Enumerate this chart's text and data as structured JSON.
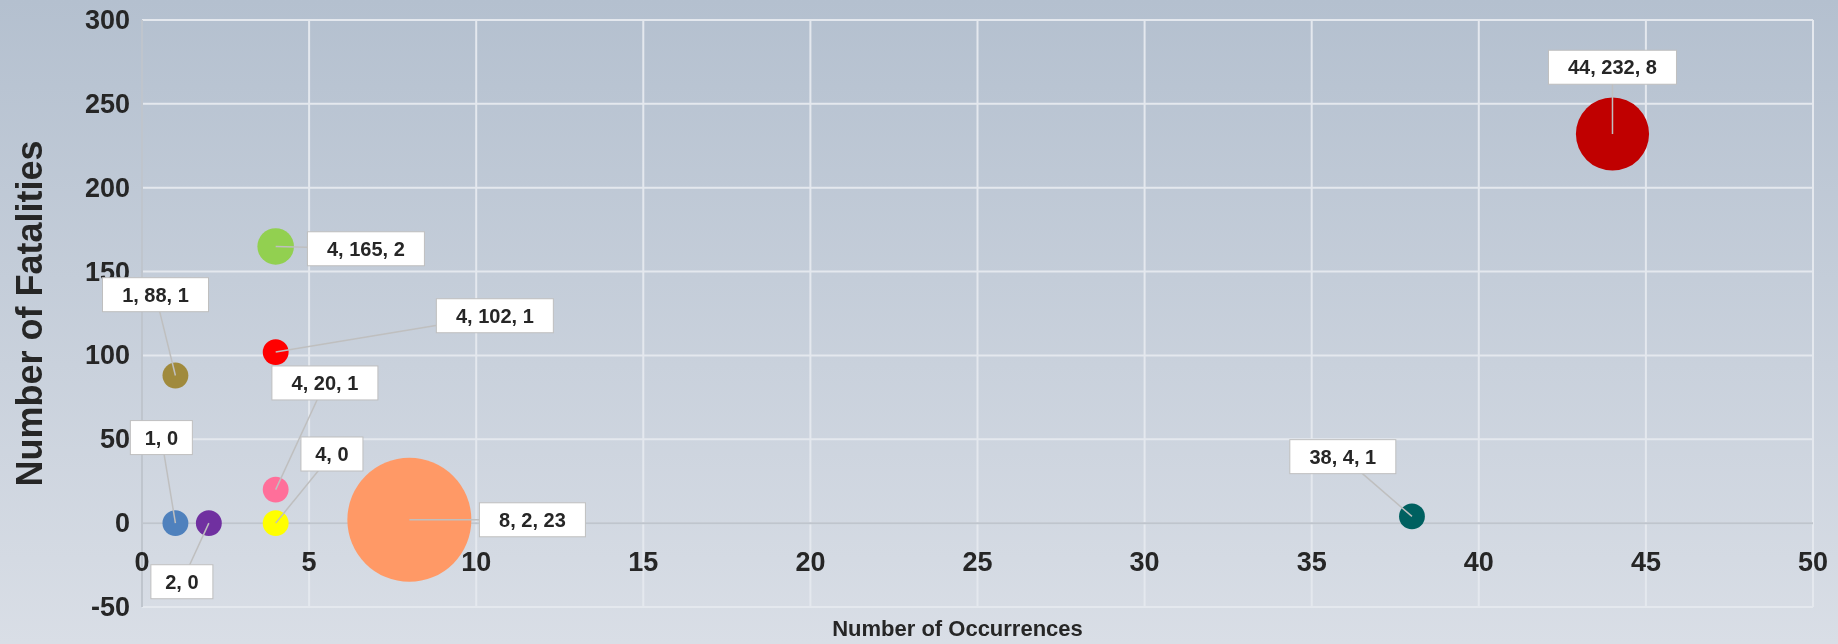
{
  "chart_data": {
    "type": "bubble",
    "xlabel": "Number of Occurrences",
    "ylabel": "Number of Fatalities",
    "x": [
      1,
      2,
      1,
      4,
      4,
      4,
      4,
      8,
      38,
      44
    ],
    "values": [
      0,
      0,
      88,
      0,
      20,
      102,
      165,
      2,
      4,
      232
    ],
    "sizes": [
      0.0435,
      0.0435,
      0.0435,
      0.0435,
      0.0435,
      0.0435,
      0.087,
      1,
      0.0435,
      0.348
    ],
    "colors": [
      "#4f81bd",
      "#7030a0",
      "#a08a3c",
      "#ffff00",
      "#ff6f9a",
      "#ff0000",
      "#92d050",
      "#ff9966",
      "#006060",
      "#c00000"
    ],
    "value_labels": [
      "1, 0",
      "2, 0",
      "1, 88, 1",
      "4, 0",
      "4, 20, 1",
      "4, 102, 1",
      "4, 165, 2",
      "8, 2, 23",
      "38, 4, 1",
      "44, 232, 8"
    ],
    "xlim": [
      0,
      50
    ],
    "xticks": [
      0,
      5,
      10,
      15,
      20,
      25,
      30,
      35,
      40,
      45,
      50
    ],
    "ylim": [
      -50,
      300
    ],
    "yticks": [
      -50,
      0,
      50,
      100,
      150,
      200,
      250,
      300
    ],
    "grid": true
  }
}
